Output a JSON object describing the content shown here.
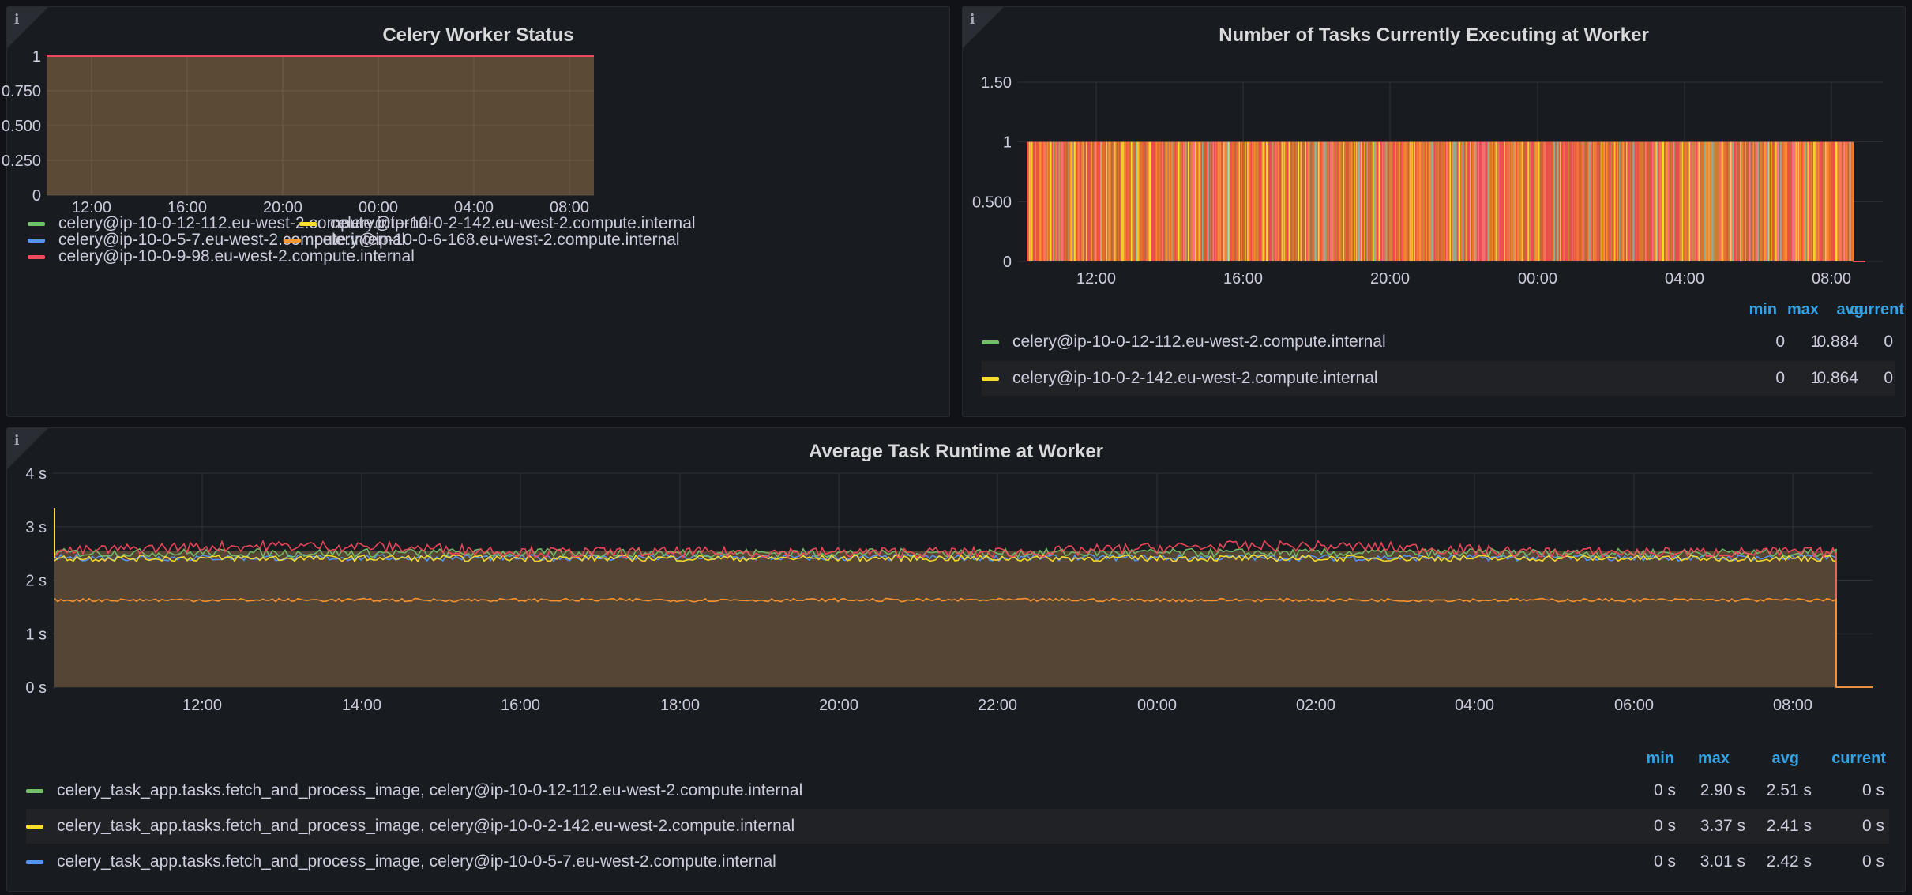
{
  "panels": {
    "status": {
      "title": "Celery Worker Status",
      "y_ticks": [
        "1",
        "0.750",
        "0.500",
        "0.250",
        "0"
      ],
      "x_ticks": [
        "12:00",
        "16:00",
        "20:00",
        "00:00",
        "04:00",
        "08:00"
      ],
      "legend": [
        {
          "label": "celery@ip-10-0-12-112.eu-west-2.compute.internal",
          "color": "#73bf69"
        },
        {
          "label": "celery@ip-10-0-2-142.eu-west-2.compute.internal",
          "color": "#fade2a"
        },
        {
          "label": "celery@ip-10-0-5-7.eu-west-2.compute.internal",
          "color": "#5794f2"
        },
        {
          "label": "celery@ip-10-0-6-168.eu-west-2.compute.internal",
          "color": "#ff9830"
        },
        {
          "label": "celery@ip-10-0-9-98.eu-west-2.compute.internal",
          "color": "#f2495c"
        }
      ]
    },
    "tasks": {
      "title": "Number of Tasks Currently Executing at Worker",
      "y_ticks": [
        "1.50",
        "1",
        "0.500",
        "0"
      ],
      "x_ticks": [
        "12:00",
        "16:00",
        "20:00",
        "00:00",
        "04:00",
        "08:00"
      ],
      "columns": [
        "min",
        "max",
        "avg",
        "current"
      ],
      "rows": [
        {
          "label": "celery@ip-10-0-12-112.eu-west-2.compute.internal",
          "color": "#73bf69",
          "min": "0",
          "max": "1",
          "avg": "0.884",
          "current": "0"
        },
        {
          "label": "celery@ip-10-0-2-142.eu-west-2.compute.internal",
          "color": "#fade2a",
          "min": "0",
          "max": "1",
          "avg": "0.864",
          "current": "0"
        }
      ]
    },
    "runtime": {
      "title": "Average Task Runtime at Worker",
      "y_ticks": [
        "4 s",
        "3 s",
        "2 s",
        "1 s",
        "0 s"
      ],
      "x_ticks": [
        "12:00",
        "14:00",
        "16:00",
        "18:00",
        "20:00",
        "22:00",
        "00:00",
        "02:00",
        "04:00",
        "06:00",
        "08:00"
      ],
      "columns": [
        "min",
        "max",
        "avg",
        "current"
      ],
      "rows": [
        {
          "label": "celery_task_app.tasks.fetch_and_process_image, celery@ip-10-0-12-112.eu-west-2.compute.internal",
          "color": "#73bf69",
          "min": "0 s",
          "max": "2.90 s",
          "avg": "2.51 s",
          "current": "0 s"
        },
        {
          "label": "celery_task_app.tasks.fetch_and_process_image, celery@ip-10-0-2-142.eu-west-2.compute.internal",
          "color": "#fade2a",
          "min": "0 s",
          "max": "3.37 s",
          "avg": "2.41 s",
          "current": "0 s"
        },
        {
          "label": "celery_task_app.tasks.fetch_and_process_image, celery@ip-10-0-5-7.eu-west-2.compute.internal",
          "color": "#5794f2",
          "min": "0 s",
          "max": "3.01 s",
          "avg": "2.42 s",
          "current": "0 s"
        }
      ]
    }
  },
  "chart_data": [
    {
      "type": "area",
      "title": "Celery Worker Status",
      "x": [
        "12:00",
        "16:00",
        "20:00",
        "00:00",
        "04:00",
        "08:00"
      ],
      "ylim": [
        0,
        1
      ],
      "series": [
        {
          "name": "celery@ip-10-0-12-112.eu-west-2.compute.internal",
          "values": [
            1,
            1,
            1,
            1,
            1,
            1
          ]
        },
        {
          "name": "celery@ip-10-0-2-142.eu-west-2.compute.internal",
          "values": [
            1,
            1,
            1,
            1,
            1,
            1
          ]
        },
        {
          "name": "celery@ip-10-0-5-7.eu-west-2.compute.internal",
          "values": [
            1,
            1,
            1,
            1,
            1,
            1
          ]
        },
        {
          "name": "celery@ip-10-0-6-168.eu-west-2.compute.internal",
          "values": [
            1,
            1,
            1,
            1,
            1,
            1
          ]
        },
        {
          "name": "celery@ip-10-0-9-98.eu-west-2.compute.internal",
          "values": [
            1,
            1,
            1,
            1,
            1,
            1
          ]
        }
      ]
    },
    {
      "type": "bar",
      "title": "Number of Tasks Currently Executing at Worker",
      "x": [
        "12:00",
        "16:00",
        "20:00",
        "00:00",
        "04:00",
        "08:00"
      ],
      "ylim": [
        0,
        1.5
      ],
      "series": [
        {
          "name": "celery@ip-10-0-12-112.eu-west-2.compute.internal",
          "min": 0,
          "max": 1,
          "avg": 0.884,
          "current": 0
        },
        {
          "name": "celery@ip-10-0-2-142.eu-west-2.compute.internal",
          "min": 0,
          "max": 1,
          "avg": 0.864,
          "current": 0
        }
      ]
    },
    {
      "type": "line",
      "title": "Average Task Runtime at Worker",
      "x": [
        "12:00",
        "14:00",
        "16:00",
        "18:00",
        "20:00",
        "22:00",
        "00:00",
        "02:00",
        "04:00",
        "06:00",
        "08:00"
      ],
      "ylim": [
        0,
        4
      ],
      "series": [
        {
          "name": "celery_task_app.tasks.fetch_and_process_image, celery@ip-10-0-12-112.eu-west-2.compute.internal",
          "min": 0,
          "max": 2.9,
          "avg": 2.51,
          "current": 0
        },
        {
          "name": "celery_task_app.tasks.fetch_and_process_image, celery@ip-10-0-2-142.eu-west-2.compute.internal",
          "min": 0,
          "max": 3.37,
          "avg": 2.41,
          "current": 0
        },
        {
          "name": "celery_task_app.tasks.fetch_and_process_image, celery@ip-10-0-5-7.eu-west-2.compute.internal",
          "min": 0,
          "max": 3.01,
          "avg": 2.42,
          "current": 0
        }
      ]
    }
  ]
}
